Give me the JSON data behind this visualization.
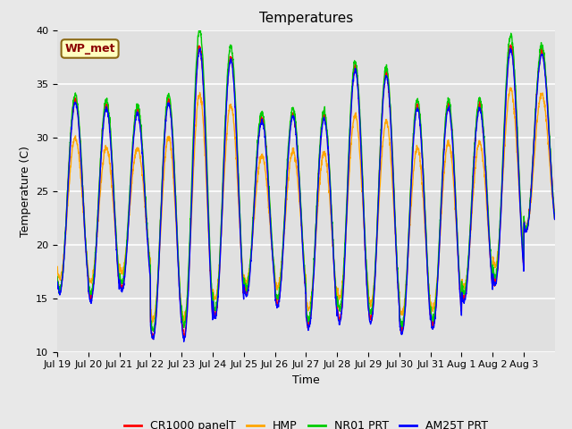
{
  "title": "Temperatures",
  "ylabel": "Temperature (C)",
  "xlabel": "Time",
  "ylim": [
    10,
    40
  ],
  "annotation_text": "WP_met",
  "series_labels": [
    "CR1000 panelT",
    "HMP",
    "NR01 PRT",
    "AM25T PRT"
  ],
  "series_colors": [
    "#FF0000",
    "#FFA500",
    "#00CC00",
    "#0000FF"
  ],
  "series_linewidths": [
    1.0,
    1.0,
    1.0,
    1.0
  ],
  "bg_color": "#E8E8E8",
  "plot_bg_color": "#E0E0E0",
  "xtick_labels": [
    "Jul 19",
    "Jul 20",
    "Jul 21",
    "Jul 22",
    "Jul 23",
    "Jul 24",
    "Jul 25",
    "Jul 26",
    "Jul 27",
    "Jul 28",
    "Jul 29",
    "Jul 30",
    "Jul 31",
    "Aug 1",
    "Aug 2",
    "Aug 3"
  ],
  "num_days": 16,
  "samples_per_day": 144,
  "day_peaks_cr": [
    33.5,
    33.0,
    32.5,
    33.5,
    38.5,
    37.5,
    31.8,
    32.2,
    32.0,
    36.5,
    36.0,
    33.0,
    33.0,
    33.0,
    38.5,
    38.0
  ],
  "day_troughs_cr": [
    15.8,
    15.0,
    16.0,
    11.5,
    11.5,
    13.5,
    15.5,
    14.5,
    12.5,
    13.0,
    13.0,
    12.0,
    12.5,
    15.0,
    16.5,
    21.5
  ],
  "hmp_peak_offsets": [
    -3.5,
    -4.0,
    -3.5,
    -3.5,
    -4.5,
    -4.5,
    -3.5,
    -3.5,
    -3.5,
    -4.5,
    -4.5,
    -4.0,
    -3.5,
    -3.5,
    -4.0,
    -4.0
  ],
  "hmp_trough_offsets": [
    1.0,
    1.5,
    1.5,
    1.5,
    1.5,
    1.5,
    1.0,
    1.5,
    1.5,
    2.0,
    1.5,
    1.5,
    1.5,
    1.0,
    1.5,
    0.0
  ],
  "nr01_peak_offsets": [
    0.5,
    0.5,
    0.5,
    0.5,
    1.5,
    1.0,
    0.5,
    0.5,
    0.5,
    0.5,
    0.5,
    0.5,
    0.5,
    0.5,
    1.0,
    0.5
  ],
  "nr01_trough_offsets": [
    0.0,
    0.5,
    0.5,
    0.5,
    1.0,
    0.5,
    0.5,
    0.5,
    0.5,
    1.0,
    0.5,
    0.5,
    0.5,
    0.5,
    0.5,
    0.0
  ],
  "title_fontsize": 11,
  "axis_fontsize": 9,
  "tick_fontsize": 8,
  "legend_fontsize": 9
}
